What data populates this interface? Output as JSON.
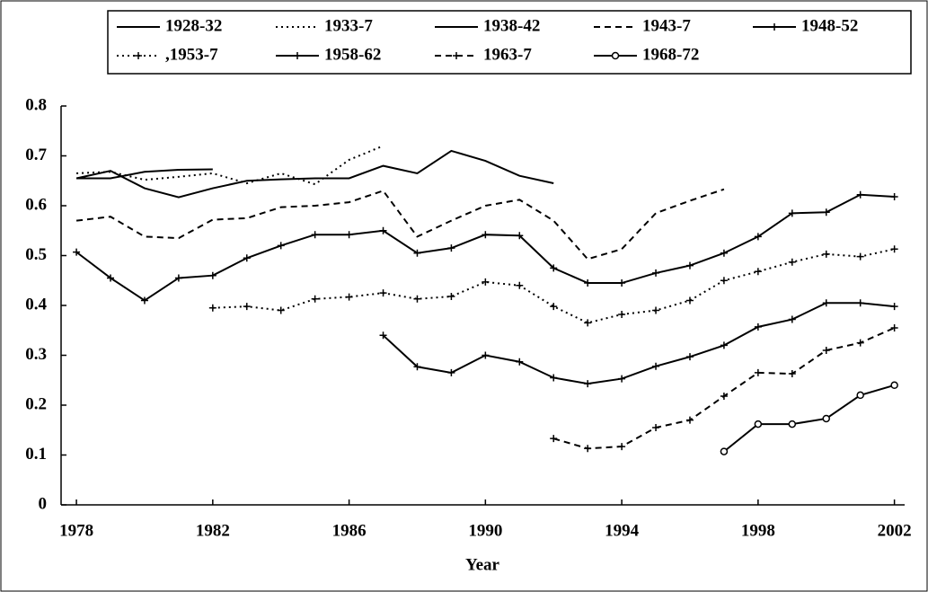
{
  "chart_data": {
    "type": "line",
    "xlabel": "Year",
    "x": [
      1978,
      1979,
      1980,
      1981,
      1982,
      1983,
      1984,
      1985,
      1986,
      1987,
      1988,
      1989,
      1990,
      1991,
      1992,
      1993,
      1994,
      1995,
      1996,
      1997,
      1998,
      1999,
      2000,
      2001,
      2002
    ],
    "xlim": [
      1977.55,
      2002.3
    ],
    "xticks": [
      1978,
      1982,
      1986,
      1990,
      1994,
      1998,
      2002
    ],
    "ylim": [
      0,
      0.8
    ],
    "yticks": [
      0,
      0.1,
      0.2,
      0.3,
      0.4,
      0.5,
      0.6,
      0.7,
      0.8
    ],
    "legend": "top",
    "series": [
      {
        "name": "1928-32",
        "color": "#000000",
        "dash": "solid",
        "marker": "none",
        "values": [
          0.655,
          0.655,
          0.668,
          0.672,
          0.673,
          null,
          null,
          null,
          null,
          null,
          null,
          null,
          null,
          null,
          null,
          null,
          null,
          null,
          null,
          null,
          null,
          null,
          null,
          null,
          null
        ]
      },
      {
        "name": "1933-7",
        "color": "#000000",
        "dash": "dotted",
        "marker": "none",
        "values": [
          0.665,
          0.668,
          0.652,
          0.658,
          0.665,
          0.645,
          0.665,
          0.643,
          0.692,
          0.72,
          null,
          null,
          null,
          null,
          null,
          null,
          null,
          null,
          null,
          null,
          null,
          null,
          null,
          null,
          null
        ]
      },
      {
        "name": "1938-42",
        "color": "#000000",
        "dash": "solid",
        "marker": "none",
        "values": [
          0.655,
          0.67,
          0.635,
          0.617,
          0.635,
          0.65,
          0.653,
          0.655,
          0.655,
          0.68,
          0.665,
          0.71,
          0.69,
          0.66,
          0.645,
          null,
          null,
          null,
          null,
          null,
          null,
          null,
          null,
          null,
          null
        ]
      },
      {
        "name": "1943-7",
        "color": "#000000",
        "dash": "dashed",
        "marker": "none",
        "values": [
          0.57,
          0.578,
          0.538,
          0.535,
          0.572,
          0.575,
          0.597,
          0.6,
          0.607,
          0.63,
          0.538,
          0.57,
          0.6,
          0.612,
          0.57,
          0.493,
          0.513,
          0.585,
          0.61,
          0.633,
          null,
          null,
          null,
          null,
          null
        ]
      },
      {
        "name": "1948-52",
        "color": "#000000",
        "dash": "solid",
        "marker": "plus",
        "values": [
          0.507,
          0.455,
          0.41,
          0.455,
          0.46,
          0.495,
          0.52,
          0.542,
          0.542,
          0.55,
          0.505,
          0.515,
          0.542,
          0.54,
          0.475,
          0.445,
          0.445,
          0.465,
          0.48,
          0.505,
          0.538,
          0.585,
          0.587,
          0.622,
          0.618
        ]
      },
      {
        "name": ",1953-7",
        "color": "#000000",
        "dash": "dotted",
        "marker": "plus",
        "values": [
          null,
          null,
          null,
          null,
          0.395,
          0.398,
          0.39,
          0.413,
          0.417,
          0.425,
          0.413,
          0.418,
          0.447,
          0.44,
          0.398,
          0.365,
          0.382,
          0.39,
          0.41,
          0.45,
          0.468,
          0.487,
          0.503,
          0.498,
          0.513
        ]
      },
      {
        "name": "1958-62",
        "color": "#000000",
        "dash": "solid",
        "marker": "plus",
        "values": [
          null,
          null,
          null,
          null,
          null,
          null,
          null,
          null,
          null,
          0.34,
          0.277,
          0.265,
          0.3,
          0.287,
          0.255,
          0.243,
          0.253,
          0.278,
          0.297,
          0.32,
          0.357,
          0.372,
          0.405,
          0.405,
          0.398
        ]
      },
      {
        "name": "1963-7",
        "color": "#000000",
        "dash": "dashed",
        "marker": "plus",
        "values": [
          null,
          null,
          null,
          null,
          null,
          null,
          null,
          null,
          null,
          null,
          null,
          null,
          null,
          null,
          0.133,
          0.113,
          0.117,
          0.155,
          0.17,
          0.218,
          0.265,
          0.263,
          0.31,
          0.325,
          0.355
        ]
      },
      {
        "name": "1968-72",
        "color": "#000000",
        "dash": "solid",
        "marker": "circle",
        "values": [
          null,
          null,
          null,
          null,
          null,
          null,
          null,
          null,
          null,
          null,
          null,
          null,
          null,
          null,
          null,
          null,
          null,
          null,
          null,
          0.107,
          0.162,
          0.162,
          0.173,
          0.22,
          0.24
        ]
      }
    ]
  }
}
